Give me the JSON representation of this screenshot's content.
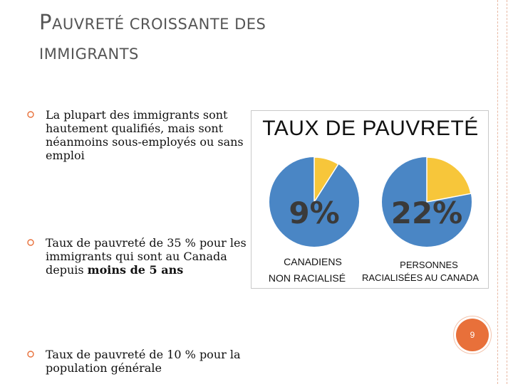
{
  "slide": {
    "title_first_letter": "P",
    "title_line1_rest": "AUVRETÉ CROISSANTE DES",
    "title_line2": "IMMIGRANTS",
    "page_number": "9"
  },
  "bullets": [
    {
      "text": "La plupart des immigrants sont hautement qualifiés, mais sont néanmoins sous-employés ou sans emploi"
    },
    {
      "pre": "Taux de pauvreté de 35 % pour les immigrants qui sont au Canada depuis ",
      "bold": "moins de 5 ans"
    },
    {
      "text": "Taux de pauvreté de 10 % pour la population générale"
    }
  ],
  "colors": {
    "pie_blue": "#4a86c5",
    "pie_yellow": "#f7c63a",
    "accent": "#e8703a"
  },
  "chart_data": {
    "type": "pie",
    "title": "TAUX DE PAUVRETÉ",
    "charts": [
      {
        "label_line1": "CANADIENS",
        "label_line2": "NON RACIALISÉ",
        "value": 9,
        "value_label": "9%"
      },
      {
        "label_line1": "PERSONNES",
        "label_line2": "RACIALISÉES AU CANADA",
        "value": 22,
        "value_label": "22%"
      }
    ]
  }
}
